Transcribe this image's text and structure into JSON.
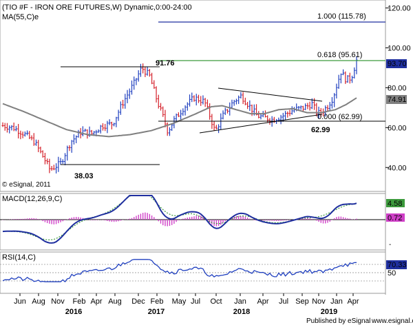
{
  "header": {
    "title": "(TIO #F - IRON ORE FUTURES,W) Dynamic,0:00-24:00",
    "ma_label": "MA(55,C)e",
    "copyright": "© eSignal, 2011"
  },
  "macd_label": "MACD(12,26,9,C)",
  "rsi_label": "RSI(14,C)",
  "footer": {
    "published": "Published by eSignal",
    "website": "www.esignal.com"
  },
  "annotations": {
    "fib_1000": "1.000 (115.78)",
    "fib_0618": "0.618 (95.61)",
    "fib_0000": "0.000 (62.99)",
    "high_label": "91.76",
    "low_label": "38.03",
    "low2_label": "62.99"
  },
  "badges": {
    "last_price": "93.70",
    "ma_value": "74.91",
    "macd_value": "4.58",
    "signal_value": "0.72",
    "rsi_value": "70.33"
  },
  "colors": {
    "up": "#1f3fbf",
    "down": "#d4202a",
    "ma": "#7f7f7f",
    "fib_blue": "#1f2f9f",
    "fib_green": "#3c9a3c",
    "macd_line": "#1f2f9f",
    "signal_line": "#3c9a3c",
    "histogram": "#d040c8",
    "rsi": "#1f3fbf"
  },
  "chart_data": [
    {
      "type": "candlestick",
      "title": "(TIO #F - IRON ORE FUTURES,W) Dynamic,0:00-24:00",
      "x_ticks": [
        "Jun",
        "Aug",
        "Nov",
        "Feb",
        "Apr",
        "Aug",
        "Dec",
        "Feb",
        "May",
        "Jul",
        "Oct",
        "Jan",
        "Apr",
        "Jul",
        "Sep",
        "Nov",
        "Jan",
        "Apr"
      ],
      "x_years": [
        "2016",
        "2017",
        "2018",
        "2019"
      ],
      "y_ticks": [
        40,
        60,
        80,
        100,
        120
      ],
      "ylim": [
        28,
        124
      ],
      "series": [
        {
          "name": "MA(55,C)e",
          "kind": "line",
          "points": [
            [
              0,
              72
            ],
            [
              0.06,
              68
            ],
            [
              0.12,
              63.5
            ],
            [
              0.18,
              59
            ],
            [
              0.24,
              56.5
            ],
            [
              0.3,
              55.5
            ],
            [
              0.36,
              56.5
            ],
            [
              0.42,
              58.5
            ],
            [
              0.48,
              62
            ],
            [
              0.54,
              66.5
            ],
            [
              0.59,
              70.5
            ],
            [
              0.62,
              71
            ],
            [
              0.66,
              69
            ],
            [
              0.7,
              67
            ],
            [
              0.74,
              67
            ],
            [
              0.78,
              69
            ],
            [
              0.82,
              69.5
            ],
            [
              0.86,
              67.5
            ],
            [
              0.9,
              67.5
            ],
            [
              0.94,
              69
            ],
            [
              0.97,
              71.5
            ],
            [
              1.0,
              74.91
            ]
          ]
        },
        {
          "name": "Price",
          "kind": "waypoints",
          "points": [
            [
              0,
              61
            ],
            [
              0.04,
              60
            ],
            [
              0.08,
              57
            ],
            [
              0.12,
              53
            ],
            [
              0.16,
              44
            ],
            [
              0.18,
              39
            ],
            [
              0.22,
              42
            ],
            [
              0.26,
              53
            ],
            [
              0.3,
              58
            ],
            [
              0.34,
              57
            ],
            [
              0.38,
              61
            ],
            [
              0.42,
              62
            ],
            [
              0.46,
              73
            ],
            [
              0.5,
              82
            ],
            [
              0.53,
              90
            ],
            [
              0.56,
              86
            ],
            [
              0.59,
              73
            ],
            [
              0.61,
              66
            ],
            [
              0.63,
              58
            ],
            [
              0.65,
              63
            ],
            [
              0.69,
              70
            ],
            [
              0.73,
              75
            ],
            [
              0.77,
              73
            ],
            [
              0.79,
              66
            ],
            [
              0.81,
              58
            ],
            [
              0.84,
              66
            ],
            [
              0.88,
              73
            ],
            [
              0.91,
              76
            ],
            [
              0.94,
              71
            ],
            [
              0.97,
              66
            ],
            [
              1.0,
              65
            ],
            [
              1.03,
              64
            ],
            [
              1.07,
              66
            ],
            [
              1.11,
              69
            ],
            [
              1.15,
              70
            ],
            [
              1.18,
              72
            ],
            [
              1.2,
              67
            ],
            [
              1.22,
              68
            ],
            [
              1.24,
              71
            ],
            [
              1.26,
              75
            ],
            [
              1.29,
              88
            ],
            [
              1.31,
              84
            ],
            [
              1.33,
              85
            ],
            [
              1.35,
              93.7
            ]
          ]
        }
      ],
      "levels": [
        {
          "label": "1.000 (115.78)",
          "value": 115.78
        },
        {
          "label": "0.618 (95.61)",
          "value": 95.61
        },
        {
          "label": "0.000 (62.99)",
          "value": 62.99
        },
        {
          "label": "91.76",
          "value": 91.76
        },
        {
          "label": "38.03",
          "value": 38.03
        }
      ],
      "last_price": 93.7,
      "ma_last": 74.91
    },
    {
      "type": "line",
      "title": "MACD(12,26,9,C)",
      "series": [
        {
          "name": "MACD",
          "last": 4.58
        },
        {
          "name": "Signal",
          "last": 0.72
        }
      ],
      "zero_line": true
    },
    {
      "type": "line",
      "title": "RSI(14,C)",
      "y_ticks": [
        50
      ],
      "series": [
        {
          "name": "RSI",
          "last": 70.33
        }
      ]
    }
  ]
}
